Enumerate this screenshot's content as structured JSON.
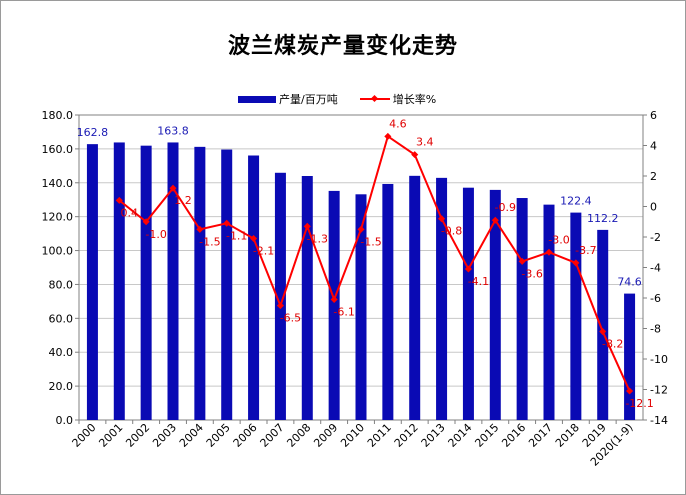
{
  "chart_data": {
    "type": "bar+line",
    "title": "波兰煤炭产量变化走势",
    "categories": [
      "2000",
      "2001",
      "2002",
      "2003",
      "2004",
      "2005",
      "2006",
      "2007",
      "2008",
      "2009",
      "2010",
      "2011",
      "2012",
      "2013",
      "2014",
      "2015",
      "2016",
      "2017",
      "2018",
      "2019",
      "2020(1-9)"
    ],
    "series": [
      {
        "name": "产量/百万吨",
        "type": "bar",
        "axis": "left",
        "color": "#0a0ab4",
        "values": [
          162.8,
          163.8,
          161.9,
          163.8,
          161.2,
          159.6,
          156.1,
          145.9,
          144.0,
          135.2,
          133.2,
          139.3,
          144.1,
          142.9,
          137.1,
          135.8,
          131.0,
          127.1,
          122.4,
          112.2,
          74.6
        ],
        "labels": [
          "162.8",
          "",
          "",
          "163.8",
          "",
          "",
          "",
          "",
          "",
          "",
          "",
          "",
          "",
          "",
          "",
          "",
          "",
          "",
          "122.4",
          "112.2",
          "74.6"
        ]
      },
      {
        "name": "增长率%",
        "type": "line",
        "axis": "right",
        "color": "#ff0000",
        "values": [
          null,
          0.4,
          -1.0,
          1.2,
          -1.5,
          -1.1,
          -2.1,
          -6.5,
          -1.3,
          -6.1,
          -1.5,
          4.6,
          3.4,
          -0.8,
          -4.1,
          -0.9,
          -3.6,
          -3.0,
          -3.7,
          -8.2,
          -12.1
        ],
        "labels": [
          "",
          "0.4",
          "-1.0",
          "1.2",
          "-1.5",
          "-1.1",
          "-2.1",
          "-6.5",
          "-1.3",
          "-6.1",
          "-1.5",
          "4.6",
          "3.4",
          "-0.8",
          "-4.1",
          "-0.9",
          "-3.6",
          "-3.0",
          "-3.7",
          "-8.2",
          "-12.1"
        ]
      }
    ],
    "y_left": {
      "min": 0,
      "max": 180,
      "step": 20,
      "ticks": [
        "0.0",
        "20.0",
        "40.0",
        "60.0",
        "80.0",
        "100.0",
        "120.0",
        "140.0",
        "160.0",
        "180.0"
      ]
    },
    "y_right": {
      "min": -14,
      "max": 6,
      "step": 2,
      "ticks": [
        "-14",
        "-12",
        "-10",
        "-8",
        "-6",
        "-4",
        "-2",
        "0",
        "2",
        "4",
        "6"
      ]
    },
    "grid": true,
    "legend_position": "top"
  }
}
